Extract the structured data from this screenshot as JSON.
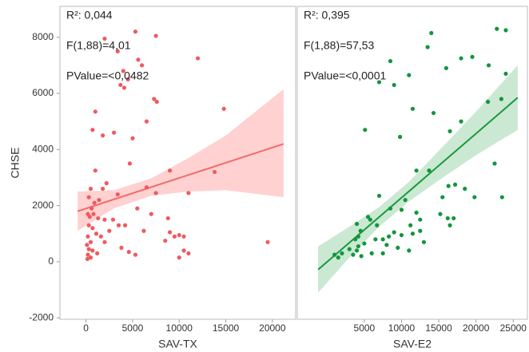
{
  "chart_data": [
    {
      "type": "scatter",
      "x_label": "SAV-TX",
      "y_label": "CHSE",
      "annotations": [
        "R²: 0,044",
        "F(1,88)=4,01",
        "PValue=<0,0482"
      ],
      "xlim": [
        -2800,
        22500
      ],
      "ylim": [
        -2050,
        9100
      ],
      "xticks": [
        0,
        5000,
        10000,
        15000,
        20000
      ],
      "yticks": [
        -2000,
        0,
        2000,
        4000,
        6000,
        8000
      ],
      "points": {
        "color": "#ef5a5f",
        "x": [
          2000,
          3400,
          5300,
          7500,
          12000,
          4000,
          4500,
          5600,
          6000,
          3700,
          4100,
          7300,
          7600,
          14800,
          1000,
          6500,
          700,
          3000,
          1800,
          5000,
          4700,
          1000,
          9000,
          13800,
          2200,
          1800,
          3400,
          11000,
          7500,
          500,
          300,
          900,
          1400,
          600,
          200,
          400,
          800,
          1300,
          2000,
          2900,
          5500,
          7000,
          8800,
          300,
          700,
          1100,
          1600,
          2500,
          3500,
          4200,
          6200,
          8500,
          9500,
          10000,
          10500,
          200,
          500,
          100,
          300,
          700,
          200,
          150,
          500,
          1200,
          2000,
          3800,
          4600,
          5300,
          10500,
          11000,
          10000,
          19500,
          9000,
          6500
        ],
        "y": [
          7950,
          7500,
          8200,
          8050,
          7250,
          6800,
          6500,
          7200,
          7000,
          6300,
          6200,
          5800,
          5700,
          5450,
          5350,
          5000,
          4700,
          4600,
          4500,
          4400,
          3500,
          3250,
          3250,
          3200,
          2800,
          2600,
          2400,
          2450,
          2450,
          2600,
          2300,
          2100,
          2200,
          1900,
          1700,
          1600,
          1700,
          1550,
          1500,
          1500,
          1900,
          1700,
          1550,
          1300,
          1200,
          1000,
          900,
          1100,
          1300,
          1300,
          1100,
          750,
          900,
          950,
          900,
          900,
          700,
          600,
          450,
          400,
          250,
          100,
          150,
          300,
          700,
          500,
          350,
          250,
          400,
          300,
          150,
          700,
          1050,
          2650
        ]
      },
      "fit": {
        "color": "#f26b6b",
        "x": [
          -900,
          3000,
          7000,
          11000,
          15000,
          21200
        ],
        "y": [
          1800,
          2224,
          2658,
          3093,
          3527,
          4200
        ]
      },
      "band": {
        "color": "#ffb3b3",
        "x": [
          -900,
          3000,
          7000,
          11000,
          15000,
          21200
        ],
        "lower": [
          1100,
          1900,
          2350,
          2500,
          2550,
          2300
        ],
        "upper": [
          2500,
          2550,
          2970,
          3700,
          4500,
          6150
        ]
      }
    },
    {
      "type": "scatter",
      "x_label": "SAV-E2",
      "annotations": [
        "R²: 0,395",
        "F(1,88)=57,53",
        "PValue=<0,0001"
      ],
      "xlim": [
        -4000,
        26900
      ],
      "ylim": [
        -2050,
        9100
      ],
      "xticks": [
        5000,
        10000,
        15000,
        20000,
        25000
      ],
      "points": {
        "color": "#12963c",
        "x": [
          14000,
          22800,
          24000,
          8500,
          18000,
          13500,
          19500,
          11000,
          16000,
          21700,
          24000,
          7000,
          9000,
          14300,
          21600,
          23400,
          11500,
          5100,
          9800,
          16500,
          18000,
          12000,
          13700,
          22500,
          17200,
          16300,
          18500,
          19800,
          23500,
          15500,
          10500,
          7000,
          5500,
          8500,
          10000,
          12000,
          12500,
          15200,
          16200,
          16500,
          17000,
          4000,
          4500,
          3800,
          4200,
          5000,
          6500,
          7500,
          8300,
          9000,
          10000,
          11500,
          12500,
          13000,
          3000,
          3500,
          1500,
          1000,
          2000,
          4000,
          4600,
          6000,
          7500,
          9500,
          11000,
          8000,
          6700,
          11200,
          4200,
          5800
        ],
        "y": [
          8150,
          8300,
          8250,
          7150,
          7250,
          7650,
          7300,
          6650,
          6900,
          7000,
          6700,
          6400,
          6300,
          5300,
          5700,
          5800,
          5450,
          4700,
          4450,
          4650,
          5000,
          3250,
          3250,
          3500,
          2750,
          2700,
          2600,
          2300,
          2300,
          2300,
          2200,
          2350,
          1600,
          1900,
          1850,
          1750,
          1500,
          1700,
          1550,
          1300,
          1550,
          1350,
          1100,
          800,
          550,
          650,
          800,
          800,
          900,
          1050,
          950,
          1000,
          1100,
          700,
          450,
          250,
          150,
          250,
          300,
          400,
          200,
          300,
          300,
          500,
          400,
          600,
          1300,
          1300,
          900,
          1500
        ]
      },
      "fit": {
        "color": "#179a3e",
        "x": [
          -1200,
          3000,
          7000,
          11000,
          15000,
          20000,
          25600
        ],
        "y": [
          -280,
          680,
          1595,
          2510,
          3425,
          4568,
          5850
        ]
      },
      "band": {
        "color": "#a8d8b4",
        "x": [
          -1200,
          3000,
          7000,
          11000,
          15000,
          20000,
          25600
        ],
        "lower": [
          -1100,
          150,
          1250,
          2150,
          2900,
          3800,
          4700
        ],
        "upper": [
          550,
          1250,
          1950,
          2850,
          3950,
          5350,
          7000
        ]
      }
    }
  ]
}
